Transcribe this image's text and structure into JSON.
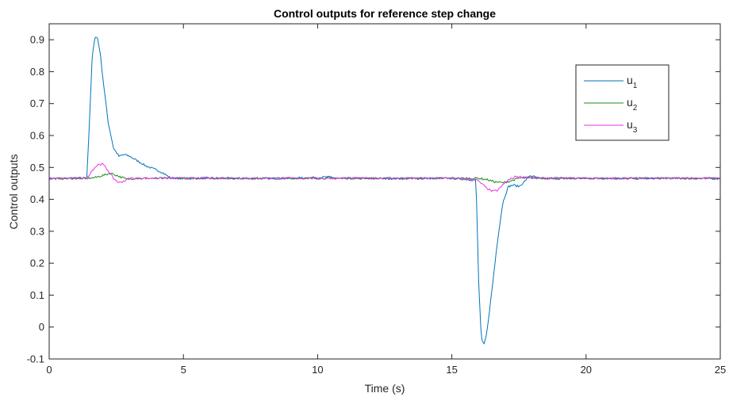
{
  "chart_data": {
    "type": "line",
    "title": "Control outputs for reference step change",
    "xlabel": "Time (s)",
    "ylabel": "Control outputs",
    "xlim": [
      0,
      25
    ],
    "ylim": [
      -0.1,
      0.95
    ],
    "x_ticks": [
      0,
      5,
      10,
      15,
      20,
      25
    ],
    "x_tick_labels": [
      "0",
      "5",
      "10",
      "15",
      "20",
      "25"
    ],
    "y_ticks": [
      -0.1,
      0,
      0.1,
      0.2,
      0.3,
      0.4,
      0.5,
      0.6,
      0.7,
      0.8,
      0.9
    ],
    "y_tick_labels": [
      "-0.1",
      "0",
      "0.1",
      "0.2",
      "0.3",
      "0.4",
      "0.5",
      "0.6",
      "0.7",
      "0.8",
      "0.9"
    ],
    "grid": false,
    "legend_position": "top-right",
    "series": [
      {
        "name": "u",
        "subscript": "1",
        "color": "#0072BD",
        "x": [
          0,
          1.4,
          1.5,
          1.6,
          1.7,
          1.8,
          1.9,
          2.0,
          2.2,
          2.4,
          2.6,
          2.8,
          3.0,
          3.3,
          3.6,
          3.9,
          4.2,
          4.5,
          5.0,
          6.0,
          7.5,
          9.0,
          10.5,
          10.8,
          11.2,
          13.0,
          15.0,
          15.9,
          15.95,
          16.0,
          16.1,
          16.2,
          16.3,
          16.5,
          16.7,
          16.9,
          17.1,
          17.3,
          17.5,
          17.7,
          17.9,
          18.1,
          18.3,
          18.6,
          19.0,
          20.0,
          21.5,
          23.0,
          25.0
        ],
        "values": [
          0.465,
          0.467,
          0.64,
          0.84,
          0.91,
          0.905,
          0.86,
          0.78,
          0.64,
          0.56,
          0.535,
          0.54,
          0.535,
          0.52,
          0.505,
          0.495,
          0.485,
          0.468,
          0.465,
          0.467,
          0.465,
          0.466,
          0.47,
          0.465,
          0.466,
          0.465,
          0.466,
          0.46,
          0.3,
          0.14,
          -0.04,
          -0.055,
          -0.02,
          0.12,
          0.27,
          0.39,
          0.44,
          0.445,
          0.44,
          0.455,
          0.475,
          0.47,
          0.465,
          0.466,
          0.465,
          0.466,
          0.465,
          0.466,
          0.465
        ]
      },
      {
        "name": "u",
        "subscript": "2",
        "color": "#1F8A1F",
        "x": [
          0,
          1.4,
          1.7,
          2.0,
          2.3,
          2.6,
          2.9,
          3.2,
          4.0,
          10.0,
          15.0,
          16.0,
          16.3,
          16.6,
          16.9,
          17.2,
          17.5,
          17.8,
          18.2,
          20.0,
          25.0
        ],
        "values": [
          0.465,
          0.466,
          0.468,
          0.475,
          0.482,
          0.472,
          0.463,
          0.466,
          0.466,
          0.466,
          0.466,
          0.466,
          0.462,
          0.455,
          0.452,
          0.458,
          0.466,
          0.468,
          0.466,
          0.466,
          0.466
        ]
      },
      {
        "name": "u",
        "subscript": "3",
        "color": "#E831E8",
        "x": [
          0,
          1.4,
          1.55,
          1.7,
          1.85,
          2.0,
          2.2,
          2.4,
          2.6,
          2.8,
          3.0,
          3.5,
          5.0,
          10.0,
          15.0,
          15.9,
          16.1,
          16.3,
          16.5,
          16.7,
          16.9,
          17.1,
          17.4,
          17.8,
          18.5,
          25.0
        ],
        "values": [
          0.465,
          0.466,
          0.485,
          0.5,
          0.51,
          0.51,
          0.49,
          0.465,
          0.452,
          0.458,
          0.466,
          0.466,
          0.466,
          0.466,
          0.466,
          0.462,
          0.45,
          0.435,
          0.425,
          0.428,
          0.445,
          0.46,
          0.472,
          0.468,
          0.466,
          0.466
        ]
      }
    ]
  }
}
